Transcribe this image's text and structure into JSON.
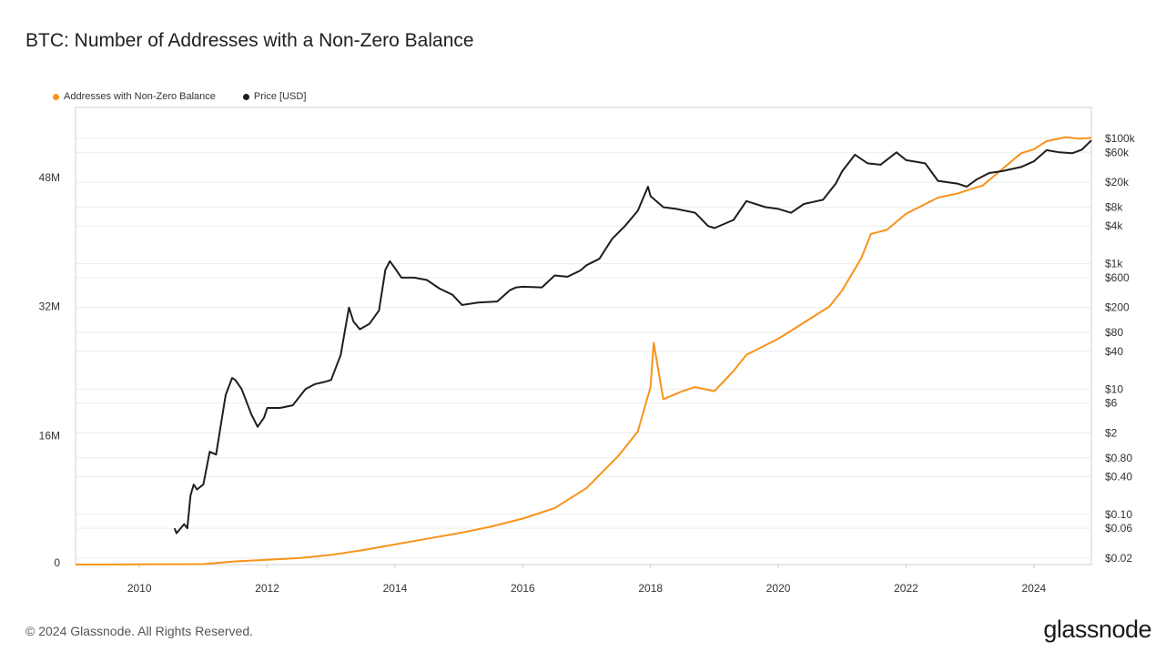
{
  "title": "BTC: Number of Addresses with a Non-Zero Balance",
  "footer": "© 2024 Glassnode. All Rights Reserved.",
  "brand": "glassnode",
  "colors": {
    "addresses": "#f7931a",
    "price": "#1e1e1e",
    "grid": "#ececec",
    "axis": "#cfcfcf"
  },
  "chart_data": {
    "type": "line",
    "title": "BTC: Number of Addresses with a Non-Zero Balance",
    "x_range": [
      2009,
      2024.9
    ],
    "x_ticks": [
      "2010",
      "2012",
      "2014",
      "2016",
      "2018",
      "2020",
      "2022",
      "2024"
    ],
    "left_axis": {
      "label": "",
      "ylim": [
        0,
        56000000
      ],
      "ticks": [
        "0",
        "16M",
        "32M",
        "48M"
      ]
    },
    "right_axis": {
      "label": "",
      "scale": "log",
      "ticks": [
        "$0.02",
        "$0.06",
        "$0.10",
        "$0.40",
        "$0.80",
        "$2",
        "$6",
        "$10",
        "$40",
        "$80",
        "$200",
        "$600",
        "$1k",
        "$4k",
        "$8k",
        "$20k",
        "$60k",
        "$100k"
      ]
    },
    "legend_position": "top-left",
    "grid": true,
    "series": [
      {
        "name": "Addresses with Non-Zero Balance",
        "axis": "left",
        "x": [
          2009.0,
          2010.0,
          2011.0,
          2011.5,
          2012.0,
          2012.5,
          2013.0,
          2013.5,
          2014.0,
          2014.5,
          2015.0,
          2015.5,
          2016.0,
          2016.5,
          2017.0,
          2017.5,
          2017.8,
          2018.0,
          2018.05,
          2018.2,
          2018.5,
          2018.7,
          2019.0,
          2019.3,
          2019.5,
          2020.0,
          2020.5,
          2020.8,
          2021.0,
          2021.3,
          2021.45,
          2021.7,
          2022.0,
          2022.5,
          2022.8,
          2023.0,
          2023.2,
          2023.5,
          2023.8,
          2024.0,
          2024.2,
          2024.5,
          2024.7,
          2024.9
        ],
        "values": [
          0,
          20000,
          60000,
          400000,
          600000,
          800000,
          1200000,
          1800000,
          2500000,
          3200000,
          3900000,
          4700000,
          5700000,
          7000000,
          9500000,
          13500000,
          16500000,
          22000000,
          27500000,
          20500000,
          21500000,
          22000000,
          21500000,
          24000000,
          26000000,
          28000000,
          30500000,
          32000000,
          34000000,
          38000000,
          41000000,
          41500000,
          43500000,
          45500000,
          46000000,
          46500000,
          47000000,
          49000000,
          51000000,
          51500000,
          52500000,
          53000000,
          52800000,
          52900000
        ]
      },
      {
        "name": "Price [USD]",
        "axis": "right",
        "x": [
          2010.55,
          2010.58,
          2010.7,
          2010.75,
          2010.8,
          2010.85,
          2010.9,
          2011.0,
          2011.1,
          2011.2,
          2011.35,
          2011.45,
          2011.5,
          2011.6,
          2011.75,
          2011.85,
          2011.95,
          2012.0,
          2012.2,
          2012.4,
          2012.6,
          2012.75,
          2012.9,
          2013.0,
          2013.15,
          2013.28,
          2013.35,
          2013.45,
          2013.6,
          2013.75,
          2013.85,
          2013.92,
          2014.0,
          2014.1,
          2014.3,
          2014.5,
          2014.7,
          2014.9,
          2015.05,
          2015.3,
          2015.6,
          2015.8,
          2015.9,
          2016.0,
          2016.3,
          2016.5,
          2016.7,
          2016.9,
          2017.0,
          2017.2,
          2017.4,
          2017.6,
          2017.8,
          2017.96,
          2018.0,
          2018.2,
          2018.4,
          2018.7,
          2018.9,
          2019.0,
          2019.3,
          2019.5,
          2019.8,
          2020.0,
          2020.2,
          2020.4,
          2020.7,
          2020.9,
          2021.0,
          2021.2,
          2021.4,
          2021.6,
          2021.85,
          2022.0,
          2022.3,
          2022.5,
          2022.8,
          2022.95,
          2023.1,
          2023.3,
          2023.5,
          2023.8,
          2024.0,
          2024.2,
          2024.4,
          2024.6,
          2024.75,
          2024.9
        ],
        "values": [
          0.06,
          0.05,
          0.07,
          0.06,
          0.2,
          0.3,
          0.25,
          0.3,
          1.0,
          0.9,
          8,
          15,
          14,
          10,
          4,
          2.5,
          3.5,
          5,
          5,
          5.5,
          10,
          12,
          13,
          14,
          35,
          200,
          120,
          90,
          110,
          180,
          800,
          1100,
          850,
          600,
          600,
          550,
          400,
          320,
          220,
          240,
          250,
          380,
          420,
          430,
          420,
          650,
          620,
          780,
          950,
          1200,
          2500,
          4000,
          7000,
          17000,
          12000,
          8000,
          7500,
          6500,
          4000,
          3700,
          5000,
          10000,
          8000,
          7500,
          6500,
          9000,
          10500,
          19000,
          30000,
          55000,
          40000,
          38000,
          60000,
          45000,
          40000,
          21000,
          19000,
          17000,
          22000,
          28000,
          30000,
          35000,
          43000,
          65000,
          60000,
          58000,
          66000,
          93000
        ]
      }
    ]
  }
}
